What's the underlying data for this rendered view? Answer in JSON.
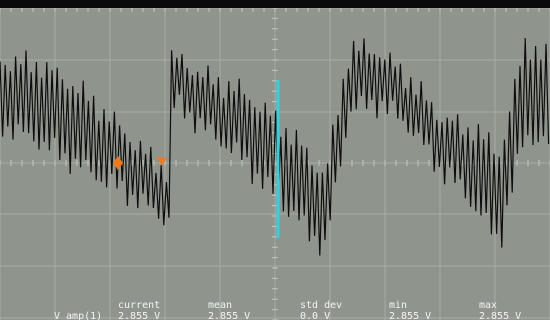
{
  "scope": {
    "colors": {
      "screen_bg": "#8f958c",
      "grid": "#a7ada4",
      "grid_center": "#c3c8c0",
      "trace": "#0d0d0d",
      "cursor_line": "#2fd3e0",
      "marker": "#f07a1a",
      "text": "#f4f4f4"
    },
    "marker_icons": [
      "trigger-point-icon",
      "trigger-level-icon"
    ]
  },
  "measurement": {
    "row_label": "V amp(1)",
    "columns": [
      {
        "header": "current",
        "value": "2.855 V"
      },
      {
        "header": "mean",
        "value": "2.855 V"
      },
      {
        "header": "std dev",
        "value": "0.0 V"
      },
      {
        "header": "min",
        "value": "2.855 V"
      },
      {
        "header": "max",
        "value": "2.855 V"
      }
    ]
  }
}
